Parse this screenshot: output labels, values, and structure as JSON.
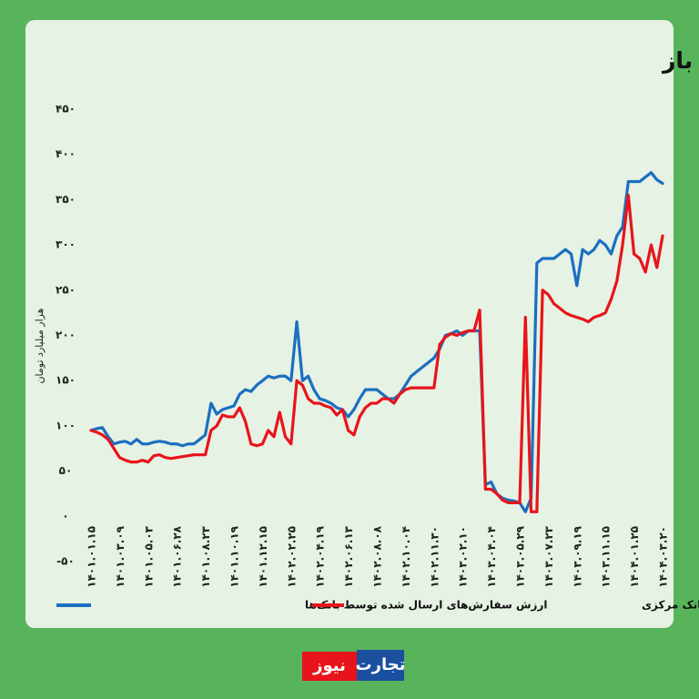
{
  "chart_data": {
    "type": "line",
    "title": "روند سفارش‌های ارسالی و پذیرفته‌شده بانک‌ها در بازار باز",
    "y_label": "هزار میلیارد تومان",
    "categories": [
      "۱۴۰۱.۰۱.۱۵",
      null,
      null,
      null,
      null,
      "۱۴۰۱.۰۳.۰۹",
      null,
      null,
      null,
      null,
      "۱۴۰۱.۰۵.۰۳",
      null,
      null,
      null,
      null,
      "۱۴۰۱.۰۶.۲۸",
      null,
      null,
      null,
      null,
      "۱۴۰۱.۰۸.۲۳",
      null,
      null,
      null,
      null,
      "۱۴۰۱.۱۰.۱۹",
      null,
      null,
      null,
      null,
      "۱۴۰۱.۱۲.۱۵",
      null,
      null,
      null,
      null,
      "۱۴۰۲.۰۲.۲۵",
      null,
      null,
      null,
      null,
      "۱۴۰۲.۰۴.۱۹",
      null,
      null,
      null,
      null,
      "۱۴۰۲.۰۶.۱۳",
      null,
      null,
      null,
      null,
      "۱۴۰۲.۰۸.۰۸",
      null,
      null,
      null,
      null,
      "۱۴۰۲.۱۰.۰۴",
      null,
      null,
      null,
      null,
      "۱۴۰۲.۱۱.۳۰",
      null,
      null,
      null,
      null,
      "۱۴۰۳.۰۲.۱۰",
      null,
      null,
      null,
      null,
      "۱۴۰۳.۰۴.۰۴",
      null,
      null,
      null,
      null,
      "۱۴۰۳.۰۵.۲۹",
      null,
      null,
      null,
      null,
      "۱۴۰۳.۰۷.۲۳",
      null,
      null,
      null,
      null,
      "۱۴۰۳.۰۹.۱۹",
      null,
      null,
      null,
      null,
      "۱۴۰۳.۱۱.۱۵",
      null,
      null,
      null,
      null,
      "۱۴۰۴.۰۱.۲۵",
      null,
      null,
      null,
      null,
      "۱۴۰۴.۰۳.۲۰"
    ],
    "series": [
      {
        "name": "ارزش سفارش‌های ارسال شده توسط بانک‌ها",
        "color": "#1b6fc2",
        "values": [
          95,
          97,
          98,
          88,
          80,
          82,
          83,
          80,
          85,
          80,
          80,
          82,
          83,
          82,
          80,
          80,
          78,
          80,
          80,
          85,
          90,
          125,
          113,
          118,
          120,
          122,
          135,
          140,
          138,
          145,
          150,
          155,
          153,
          155,
          155,
          150,
          215,
          150,
          155,
          140,
          130,
          128,
          125,
          120,
          118,
          110,
          118,
          130,
          140,
          140,
          140,
          135,
          130,
          130,
          135,
          145,
          155,
          160,
          165,
          170,
          175,
          185,
          200,
          202,
          205,
          200,
          205,
          205,
          205,
          35,
          38,
          25,
          20,
          18,
          17,
          15,
          5,
          20,
          280,
          285,
          285,
          285,
          290,
          295,
          290,
          255,
          295,
          290,
          295,
          305,
          300,
          290,
          310,
          320,
          370,
          370,
          370,
          375,
          380,
          372,
          368
        ]
      },
      {
        "name": "ارزش سفارش‌های پذیرفته شده توسط بانک مرکزی",
        "color": "#e8141b",
        "values": [
          95,
          93,
          90,
          85,
          75,
          65,
          62,
          60,
          60,
          62,
          60,
          67,
          68,
          65,
          64,
          65,
          66,
          67,
          68,
          68,
          68,
          95,
          100,
          112,
          110,
          110,
          120,
          105,
          80,
          78,
          80,
          95,
          88,
          115,
          88,
          80,
          150,
          145,
          130,
          125,
          125,
          122,
          120,
          112,
          118,
          95,
          90,
          110,
          120,
          125,
          125,
          130,
          130,
          125,
          135,
          140,
          142,
          142,
          142,
          142,
          142,
          190,
          198,
          202,
          200,
          203,
          205,
          205,
          228,
          30,
          30,
          25,
          18,
          15,
          15,
          15,
          220,
          5,
          5,
          250,
          245,
          235,
          230,
          225,
          222,
          220,
          218,
          215,
          220,
          222,
          225,
          240,
          260,
          300,
          355,
          290,
          285,
          270,
          300,
          275,
          310
        ]
      }
    ],
    "ylim": [
      -50,
      450
    ],
    "yticks": [
      {
        "value": -50,
        "label": "-۵۰"
      },
      {
        "value": 0,
        "label": "۰"
      },
      {
        "value": 50,
        "label": "۵۰"
      },
      {
        "value": 100,
        "label": "۱۰۰"
      },
      {
        "value": 150,
        "label": "۱۵۰"
      },
      {
        "value": 200,
        "label": "۲۰۰"
      },
      {
        "value": 250,
        "label": "۲۵۰"
      },
      {
        "value": 300,
        "label": "۳۰۰"
      },
      {
        "value": 350,
        "label": "۳۵۰"
      },
      {
        "value": 400,
        "label": "۴۰۰"
      },
      {
        "value": 450,
        "label": "۴۵۰"
      }
    ],
    "grid": false
  },
  "logo": {
    "right": "تجارت",
    "left": "نیوز"
  }
}
